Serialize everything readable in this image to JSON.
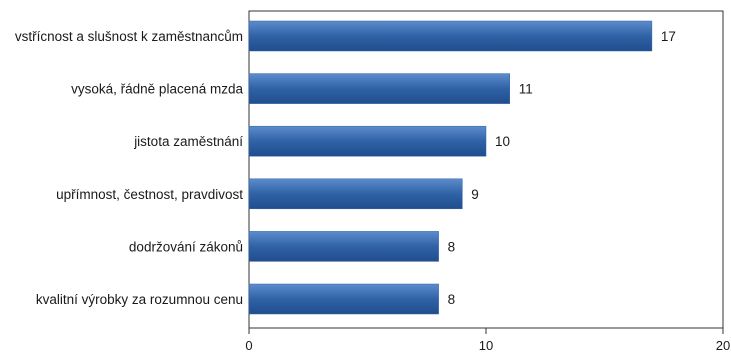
{
  "chart_data": {
    "type": "bar",
    "orientation": "horizontal",
    "categories": [
      "vstřícnost a slušnost k zaměstnancům",
      "vysoká, řádně placená mzda",
      "jistota zaměstnání",
      "upřímnost, čestnost, pravdivost",
      "dodržování zákonů",
      "kvalitní výrobky za rozumnou cenu"
    ],
    "values": [
      17,
      11,
      10,
      9,
      8,
      8
    ],
    "value_labels": [
      "17",
      "11",
      "10",
      "9",
      "8",
      "8"
    ],
    "xlim": [
      0,
      20
    ],
    "xticks": [
      0,
      10,
      20
    ],
    "xtick_labels": [
      "0",
      "10",
      "20"
    ],
    "title": "",
    "xlabel": "",
    "ylabel": "",
    "grid": false,
    "bar_color": "#2f62a6"
  }
}
